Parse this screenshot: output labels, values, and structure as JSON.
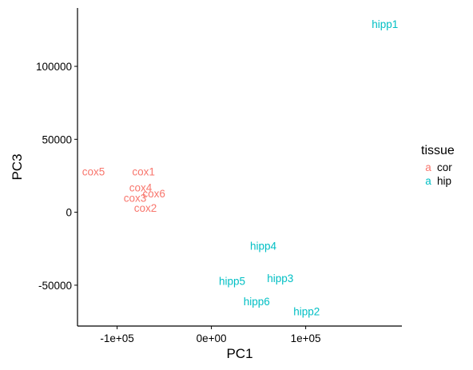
{
  "chart_data": {
    "type": "scatter",
    "mark": "text",
    "xlabel": "PC1",
    "ylabel": "PC3",
    "xlim": [
      -142000,
      202000
    ],
    "ylim": [
      -78000,
      140000
    ],
    "x_ticks": [
      {
        "value": -100000,
        "label": "-1e+05"
      },
      {
        "value": 0,
        "label": "0e+00"
      },
      {
        "value": 100000,
        "label": "1e+05"
      }
    ],
    "y_ticks": [
      {
        "value": -50000,
        "label": "-50000"
      },
      {
        "value": 0,
        "label": "0"
      },
      {
        "value": 50000,
        "label": "50000"
      },
      {
        "value": 100000,
        "label": "100000"
      }
    ],
    "grid": false,
    "legend": {
      "title": "tissue",
      "position": "right",
      "key_glyph": "a",
      "entries": [
        {
          "label": "cor",
          "color": "#F8766D"
        },
        {
          "label": "hip",
          "color": "#00BFC4"
        }
      ]
    },
    "series": [
      {
        "name": "cor",
        "color": "#F8766D",
        "points": [
          {
            "label": "cox1",
            "x": -72000,
            "y": 28000
          },
          {
            "label": "cox2",
            "x": -70000,
            "y": 3000
          },
          {
            "label": "cox3",
            "x": -81000,
            "y": 10000
          },
          {
            "label": "cox4",
            "x": -75000,
            "y": 17000
          },
          {
            "label": "cox5",
            "x": -125000,
            "y": 28000
          },
          {
            "label": "cox6",
            "x": -61000,
            "y": 13000
          }
        ]
      },
      {
        "name": "hip",
        "color": "#00BFC4",
        "points": [
          {
            "label": "hipp1",
            "x": 184000,
            "y": 129000
          },
          {
            "label": "hipp2",
            "x": 101000,
            "y": -68000
          },
          {
            "label": "hipp3",
            "x": 73000,
            "y": -45000
          },
          {
            "label": "hipp4",
            "x": 55000,
            "y": -23000
          },
          {
            "label": "hipp5",
            "x": 22000,
            "y": -47000
          },
          {
            "label": "hipp6",
            "x": 48000,
            "y": -61000
          }
        ]
      }
    ]
  }
}
